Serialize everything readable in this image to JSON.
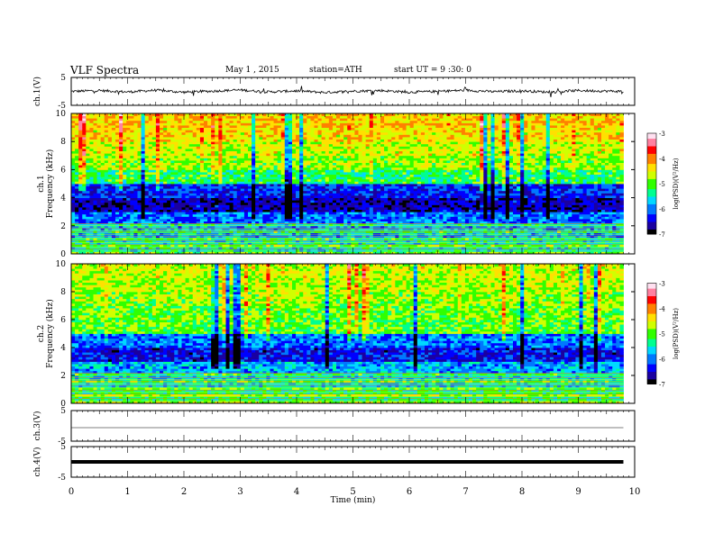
{
  "header": {
    "title": "VLF Spectra",
    "date": "May 1 , 2015",
    "station": "station=ATH",
    "start": "start UT = 9 :30: 0"
  },
  "colors": {
    "background": "#ffffff",
    "axes": "#000000",
    "colormap": [
      "#000000",
      "#1b00a0",
      "#0000ff",
      "#0078ff",
      "#00d8ff",
      "#00ff90",
      "#30ff00",
      "#d0ff00",
      "#ffe000",
      "#ff8000",
      "#ff0000",
      "#ff80a0",
      "#ffe0f0"
    ]
  },
  "chart_data": [
    {
      "type": "line",
      "panel": "ch1-waveform",
      "ylabel": "ch.1(V)",
      "yticks": [
        "5",
        "-5"
      ],
      "ylim": [
        -5,
        5
      ],
      "xlim": [
        0,
        10
      ],
      "x": [
        0.0,
        0.5,
        1.0,
        1.5,
        2.0,
        2.5,
        3.0,
        3.5,
        4.0,
        4.5,
        5.0,
        5.5,
        6.0,
        6.5,
        7.0,
        7.5,
        8.0,
        8.5,
        9.0,
        9.5,
        9.8
      ],
      "values": [
        0.0,
        0.3,
        -0.2,
        0.4,
        -0.3,
        0.1,
        0.5,
        -0.2,
        0.2,
        -0.4,
        0.1,
        0.3,
        -0.3,
        0.0,
        0.4,
        -0.1,
        0.2,
        -0.3,
        0.3,
        0.1,
        0.0
      ]
    },
    {
      "type": "heatmap",
      "panel": "ch1-spectrogram",
      "ylabel": "ch.1\nFrequency (kHz)",
      "yticks": [
        "0",
        "2",
        "4",
        "6",
        "8",
        "10"
      ],
      "ylim": [
        0,
        10
      ],
      "xlim": [
        0,
        9.8
      ],
      "colorbar": {
        "label": "log(PSD)(V²/Hz)",
        "ticks": [
          "-3",
          "-4",
          "-5",
          "-6",
          "-7"
        ],
        "range": [
          -7,
          -3
        ]
      },
      "frequency_bands_khz": [
        0,
        1,
        2,
        3,
        4,
        5,
        6,
        7,
        8,
        9,
        10
      ],
      "typical_log_psd": [
        -5.5,
        -5.8,
        -6.0,
        -6.6,
        -6.3,
        -5.2,
        -4.8,
        -4.6,
        -4.4,
        -4.3
      ]
    },
    {
      "type": "heatmap",
      "panel": "ch2-spectrogram",
      "ylabel": "ch.2\nFrequency (kHz)",
      "yticks": [
        "0",
        "2",
        "4",
        "6",
        "8",
        "10"
      ],
      "ylim": [
        0,
        10
      ],
      "xlim": [
        0,
        9.8
      ],
      "colorbar": {
        "label": "log(PSD)(V²/Hz)",
        "ticks": [
          "-3",
          "-4",
          "-5",
          "-6",
          "-7"
        ],
        "range": [
          -7,
          -3
        ]
      },
      "frequency_bands_khz": [
        0,
        1,
        2,
        3,
        4,
        5,
        6,
        7,
        8,
        9,
        10
      ],
      "typical_log_psd": [
        -5.3,
        -5.6,
        -5.8,
        -6.4,
        -6.0,
        -5.0,
        -4.9,
        -4.8,
        -4.7,
        -4.6
      ]
    },
    {
      "type": "line",
      "panel": "ch3-waveform",
      "ylabel": "ch.3(V)",
      "yticks": [
        "5",
        "-5"
      ],
      "ylim": [
        -5,
        5
      ],
      "xlim": [
        0,
        10
      ],
      "x": [
        0,
        9.8
      ],
      "values": [
        0,
        0
      ]
    },
    {
      "type": "line",
      "panel": "ch4-waveform",
      "ylabel": "ch.4(V)",
      "yticks": [
        "5",
        "-5"
      ],
      "ylim": [
        -5,
        5
      ],
      "xlim": [
        0,
        10
      ],
      "x": [
        0,
        9.8
      ],
      "values": [
        0,
        0
      ]
    }
  ],
  "xaxis": {
    "label": "Time (min)",
    "ticks": [
      "0",
      "1",
      "2",
      "3",
      "4",
      "5",
      "6",
      "7",
      "8",
      "9",
      "10"
    ]
  }
}
